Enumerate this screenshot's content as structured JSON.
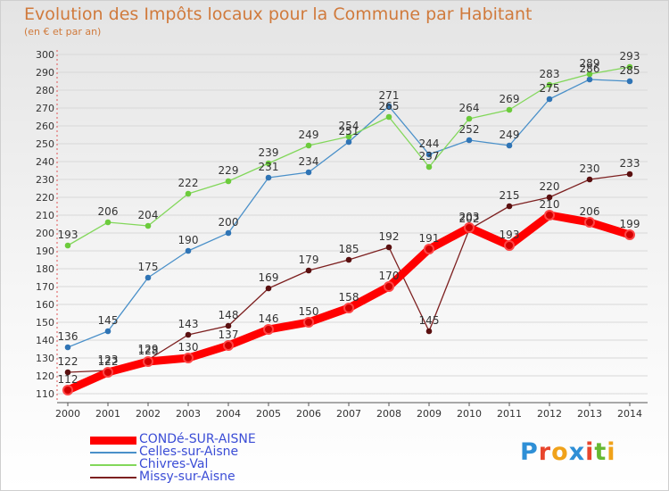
{
  "chart_data": {
    "type": "line",
    "title": "Evolution des Impôts locaux pour la Commune par Habitant",
    "subtitle": "(en € et par an)",
    "x": [
      "2000",
      "2001",
      "2002",
      "2003",
      "2004",
      "2005",
      "2006",
      "2007",
      "2008",
      "2009",
      "2010",
      "2011",
      "2012",
      "2013",
      "2014"
    ],
    "ylim": [
      110,
      300
    ],
    "yticks": [
      110,
      120,
      130,
      140,
      150,
      160,
      170,
      180,
      190,
      200,
      210,
      220,
      230,
      240,
      250,
      260,
      270,
      280,
      290,
      300
    ],
    "grid": "horizontal",
    "legend_position": "bottom-left",
    "series": [
      {
        "name": "CONDé-SUR-AISNE",
        "color": "#ff0000",
        "marker_color": "#d40000",
        "values": [
          112,
          122,
          128,
          130,
          137,
          146,
          150,
          158,
          170,
          191,
          203,
          193,
          210,
          206,
          199
        ]
      },
      {
        "name": "Celles-sur-Aisne",
        "color": "#4a90c9",
        "marker_color": "#2f74b5",
        "values": [
          136,
          145,
          175,
          190,
          200,
          231,
          234,
          251,
          271,
          244,
          252,
          249,
          275,
          286,
          285
        ]
      },
      {
        "name": "Chivres-Val",
        "color": "#82d75a",
        "marker_color": "#6ccb3c",
        "values": [
          193,
          206,
          204,
          222,
          229,
          239,
          249,
          254,
          265,
          237,
          264,
          269,
          283,
          289,
          293
        ]
      },
      {
        "name": "Missy-sur-Aisne",
        "color": "#7d2020",
        "marker_color": "#5a1010",
        "values": [
          122,
          123,
          129,
          143,
          148,
          169,
          179,
          185,
          192,
          145,
          202,
          215,
          220,
          230,
          233
        ]
      }
    ]
  },
  "logo": {
    "letters": [
      "P",
      "r",
      "o",
      "x",
      "i",
      "t",
      "i"
    ],
    "colors": [
      "#2e8fd6",
      "#e8452c",
      "#f0a21a",
      "#2e8fd6",
      "#e8452c",
      "#66b832",
      "#f0a21a"
    ]
  }
}
